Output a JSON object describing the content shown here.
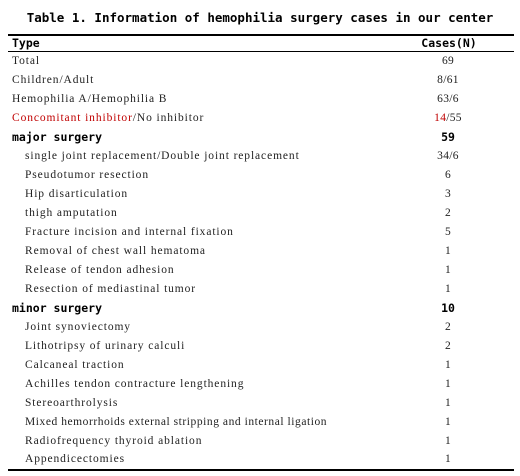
{
  "caption": "Table 1. Information of hemophilia surgery cases in our center",
  "header": {
    "type": "Type",
    "cases": "Cases(N)"
  },
  "rows": [
    {
      "label": "Total",
      "value": "69"
    },
    {
      "label": "Children/Adult",
      "value": "8/61"
    },
    {
      "label": "Hemophilia A/Hemophilia B",
      "value": "63/6"
    },
    {
      "label_red": "Concomitant inhibitor",
      "label_rest": "/No inhibitor",
      "value_red": "14",
      "value_rest": "/55"
    }
  ],
  "major": {
    "label": "major surgery",
    "value": "59",
    "items": [
      {
        "label": "single joint replacement/Double joint replacement",
        "value": "34/6"
      },
      {
        "label": "Pseudotumor resection",
        "value": "6"
      },
      {
        "label": "Hip disarticulation",
        "value": "3"
      },
      {
        "label": "thigh amputation",
        "value": "2"
      },
      {
        "label": "Fracture incision and internal fixation",
        "value": "5"
      },
      {
        "label": "Removal of chest wall hematoma",
        "value": "1"
      },
      {
        "label": "Release of tendon adhesion",
        "value": "1"
      },
      {
        "label": "Resection of mediastinal tumor",
        "value": "1"
      }
    ]
  },
  "minor": {
    "label": "minor surgery",
    "value": "10",
    "items": [
      {
        "label": "Joint synoviectomy",
        "value": "2"
      },
      {
        "label": "Lithotripsy of urinary calculi",
        "value": "2"
      },
      {
        "label": "Calcaneal traction",
        "value": "1"
      },
      {
        "label": "Achilles tendon contracture lengthening",
        "value": "1"
      },
      {
        "label": "Stereoarthrolysis",
        "value": "1"
      },
      {
        "label": "Mixed hemorrhoids external stripping and internal ligation",
        "value": "1"
      },
      {
        "label": "Radiofrequency thyroid ablation",
        "value": "1"
      },
      {
        "label": "Appendicectomies",
        "value": "1"
      }
    ]
  }
}
